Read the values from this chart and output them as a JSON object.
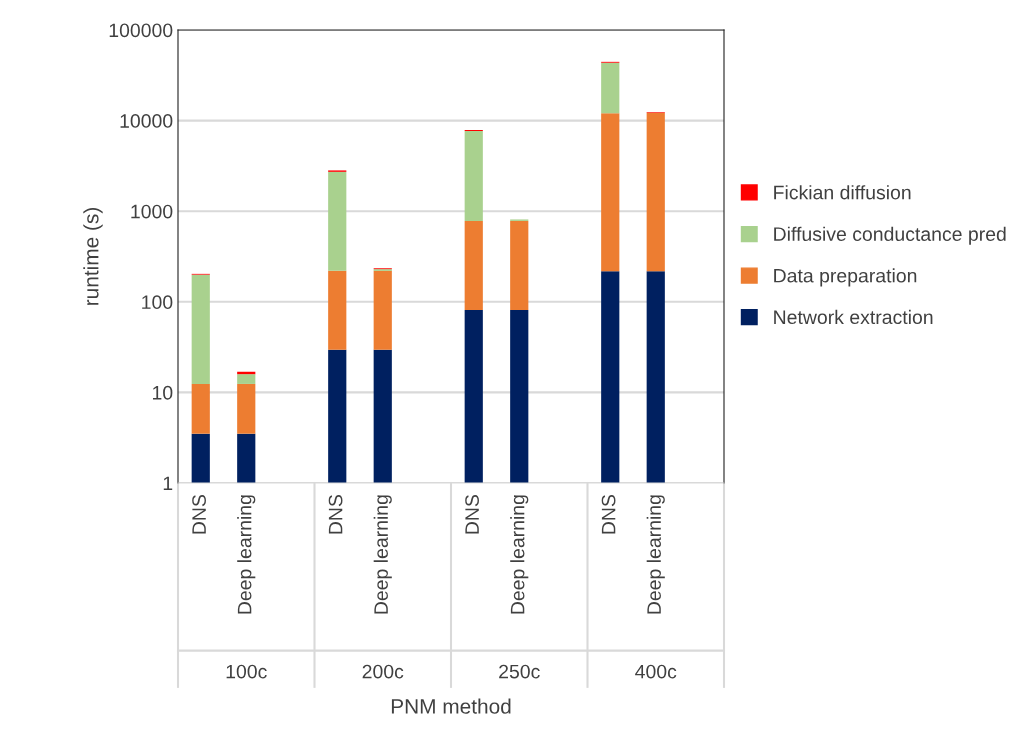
{
  "chart_data": {
    "type": "bar",
    "stacked": true,
    "log": true,
    "ylabel": "runtime (s)",
    "xlabel": "PNM method",
    "categories": [
      "DNS",
      "Deep learning",
      null,
      "DNS",
      "Deep learning",
      null,
      "DNS",
      "Deep learning",
      null,
      "DNS",
      "Deep learning",
      null
    ],
    "series": [
      {
        "name": "Network extraction",
        "color": "#002060",
        "values": [
          3.5,
          3.5,
          null,
          29.5,
          29.5,
          null,
          81,
          81,
          null,
          218,
          218,
          null
        ]
      },
      {
        "name": "Data preparation",
        "color": "#ed7d31",
        "values": [
          8.9,
          8.9,
          null,
          190,
          190,
          null,
          700,
          700,
          null,
          11800,
          12000,
          null
        ]
      },
      {
        "name": "Diffusive conductance pred",
        "color": "#a9d18e",
        "values": [
          187,
          3.5,
          null,
          2500,
          10,
          null,
          6900,
          30,
          null,
          31500,
          null,
          null
        ]
      },
      {
        "name": "Fickian diffusion",
        "color": "#ff0000",
        "values": [
          4,
          1,
          null,
          100,
          5,
          null,
          200,
          null,
          null,
          1000,
          200,
          null
        ]
      }
    ],
    "ylim": [
      1,
      100000
    ],
    "yticks": [
      1,
      10,
      100,
      1000,
      10000,
      100000
    ],
    "grid": "y",
    "legend": "right",
    "annotations": [
      "100c",
      "200c",
      "250c",
      "400c"
    ]
  }
}
